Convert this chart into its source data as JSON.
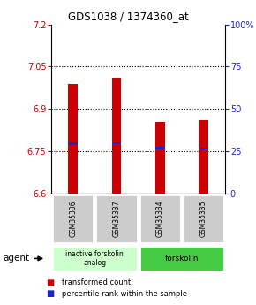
{
  "title": "GDS1038 / 1374360_at",
  "samples": [
    "GSM35336",
    "GSM35337",
    "GSM35334",
    "GSM35335"
  ],
  "red_values": [
    6.99,
    7.01,
    6.855,
    6.86
  ],
  "blue_values": [
    6.777,
    6.779,
    6.762,
    6.76
  ],
  "ylim": [
    6.6,
    7.2
  ],
  "yticks_left": [
    6.6,
    6.75,
    6.9,
    7.05,
    7.2
  ],
  "yticks_right": [
    0,
    25,
    50,
    75,
    100
  ],
  "ytick_right_labels": [
    "0",
    "25",
    "50",
    "75",
    "100%"
  ],
  "bar_width": 0.22,
  "red_color": "#cc0000",
  "blue_color": "#2222cc",
  "group1_label": "inactive forskolin\nanalog",
  "group2_label": "forskolin",
  "group1_color": "#ccffcc",
  "group2_color": "#44cc44",
  "sample_box_color": "#cccccc",
  "legend_red": "transformed count",
  "legend_blue": "percentile rank within the sample",
  "agent_label": "agent"
}
